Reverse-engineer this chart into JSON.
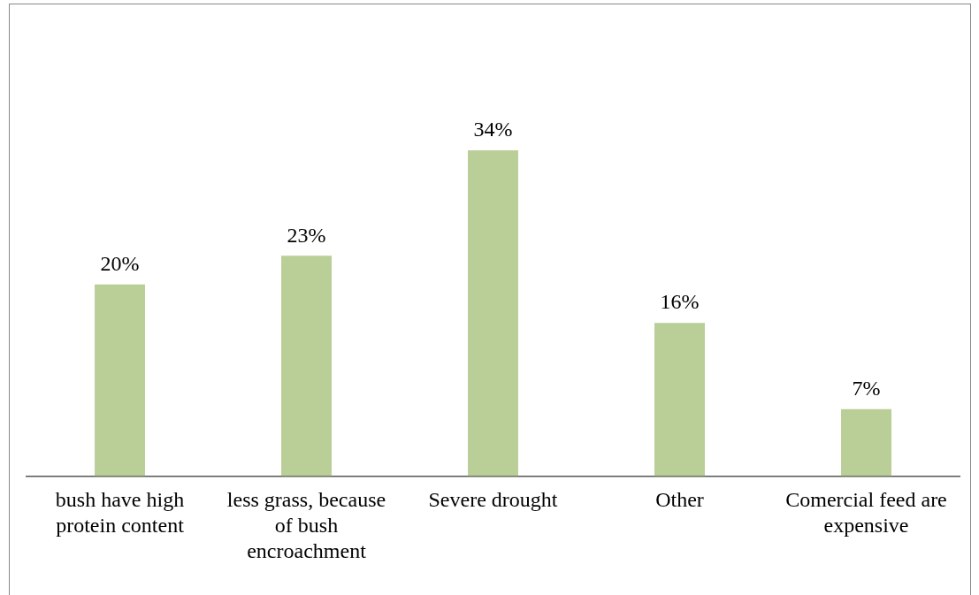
{
  "chart_data": {
    "type": "bar",
    "categories": [
      "bush have high protein content",
      "less grass, because of bush encroachment",
      "Severe drought",
      "Other",
      "Comercial feed are expensive"
    ],
    "values": [
      20,
      23,
      34,
      16,
      7
    ],
    "color": "#bacf98",
    "value_labels": [
      "20%",
      "23%",
      "34%",
      "16%",
      "7%"
    ],
    "tick_labels": "x",
    "grid": false,
    "legend": false
  }
}
